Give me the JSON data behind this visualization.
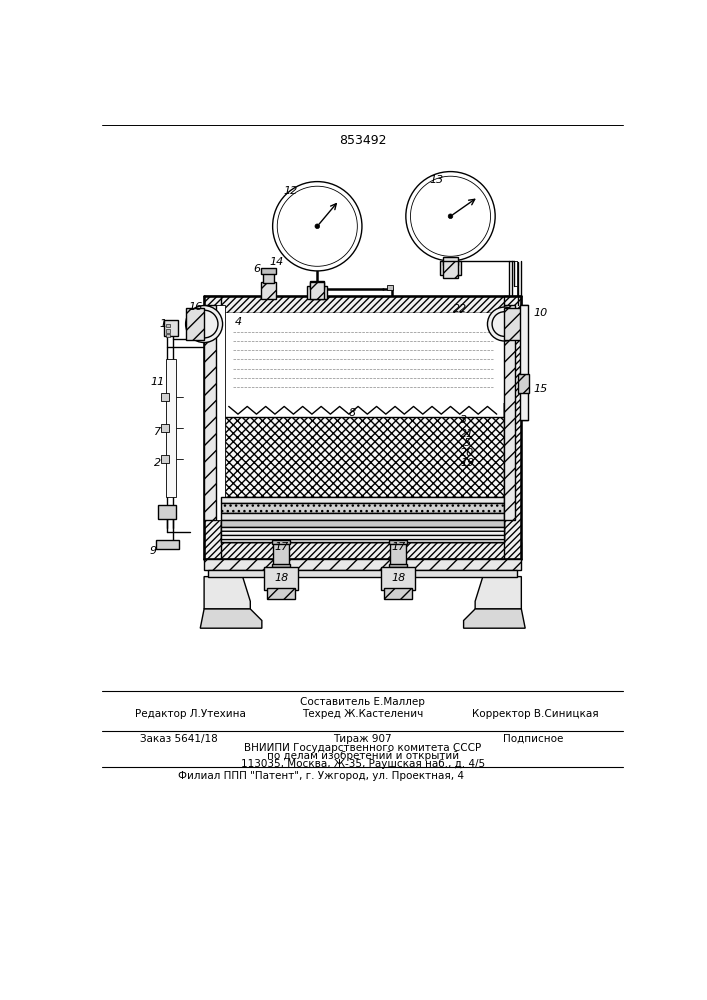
{
  "patent_number": "853492",
  "editor_line": "Редактор Л.Утехина",
  "composer_line1": "Составитель Е.Маллер",
  "composer_line2": "Техред Ж.Кастеленич",
  "corrector_line": "Корректор В.Синицкая",
  "order_line": "Заказ 5641/18",
  "tirage_line": "Тираж 907",
  "podpisnoe_line": "Подписное",
  "vniipи_line": "ВНИИПИ Государственного комитета СССР",
  "affairs_line": "по делам изобретений и открытий",
  "address_line": "113035, Москва, Ж-35, Раушская наб., д. 4/5",
  "filial_line": "Филиал ППП \"Патент\", г. Ужгород, ул. Проектная, 4",
  "bg_color": "#ffffff",
  "lc": "#000000",
  "hatch_color": "#555555"
}
